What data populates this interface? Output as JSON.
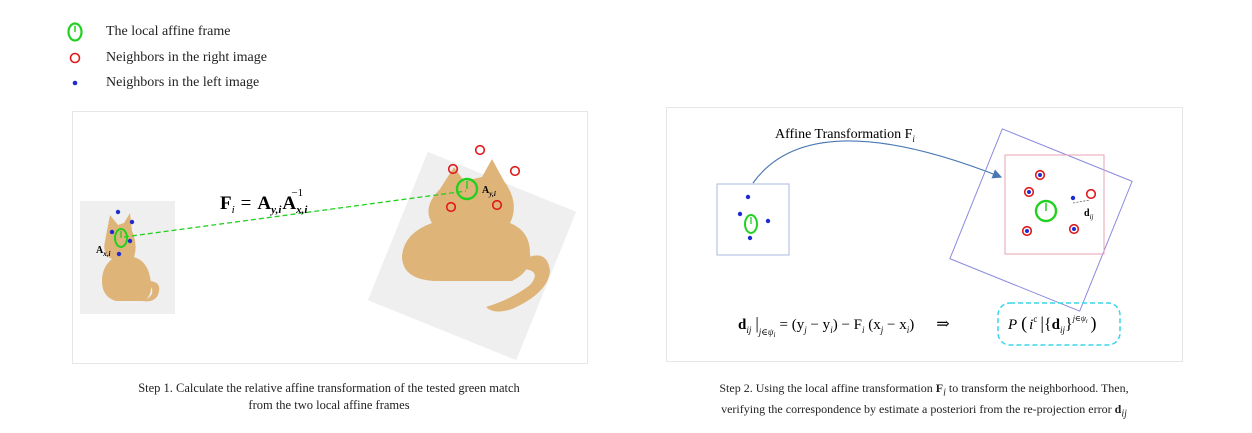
{
  "legend": {
    "items": [
      {
        "label": "The local affine frame",
        "symbol": "green-ellipse"
      },
      {
        "label": "Neighbors in the right image",
        "symbol": "red-circle"
      },
      {
        "label": "Neighbors in the left image",
        "symbol": "blue-dot"
      }
    ]
  },
  "colors": {
    "frame_green": "#22d11f",
    "neighbor_red": "#e0191b",
    "neighbor_blue": "#1f2ad1",
    "cat_fill": "#deb479",
    "panel_bg": "#efefef",
    "arrow_blue": "#4a78b4",
    "dash_cyan": "#3ad6ea",
    "frame_pink": "#e9a3b2",
    "frame_violet": "#8a8ae0"
  },
  "step1": {
    "formula": {
      "lhs": "F",
      "lhs_sub": "i",
      "eq": "=",
      "a1": "A",
      "a1_sub": "y,i",
      "a2": "A",
      "a2_sub": "x,i",
      "a2_sup": "−1"
    },
    "label_left": {
      "main": "A",
      "sub": "x,i"
    },
    "label_right": {
      "main": "A",
      "sub": "y,i"
    },
    "caption_line1": "Step 1. Calculate the relative affine transformation of the tested green match",
    "caption_line2": "from the two local affine frames"
  },
  "step2": {
    "arrow_label": "Affine Transformation F",
    "arrow_label_sub": "i",
    "d_label": "d",
    "d_label_sub": "ij",
    "equation": {
      "d": "d",
      "d_sub": "ij",
      "cond": "j∈ψ",
      "cond_sub": "i",
      "rhs": "= (y",
      "rhs_j": "j",
      "minus1": " − y",
      "rhs_i": "i",
      "rhs2": ") − F",
      "f_sub": "i",
      "rhs3": " (x",
      "x_j": "j",
      "minus2": " − x",
      "x_i": "i",
      "rhs4": ")",
      "implies": "⇒",
      "p": "P",
      "ic": "i",
      "ic_sup": "c",
      "d2": "d",
      "d2_sub": "ij",
      "d2_sup": "j∈ψ",
      "d2_sup_sub": "i"
    },
    "caption_line1_a": "Step 2.  Using the local affine transformation ",
    "caption_line1_f": "F",
    "caption_line1_fsub": "i",
    "caption_line1_b": " to transform the neighborhood. Then,",
    "caption_line2_a": "verifying the correspondence by estimate a posteriori from the re-projection error ",
    "caption_line2_d": "d",
    "caption_line2_dsub": "ij"
  }
}
